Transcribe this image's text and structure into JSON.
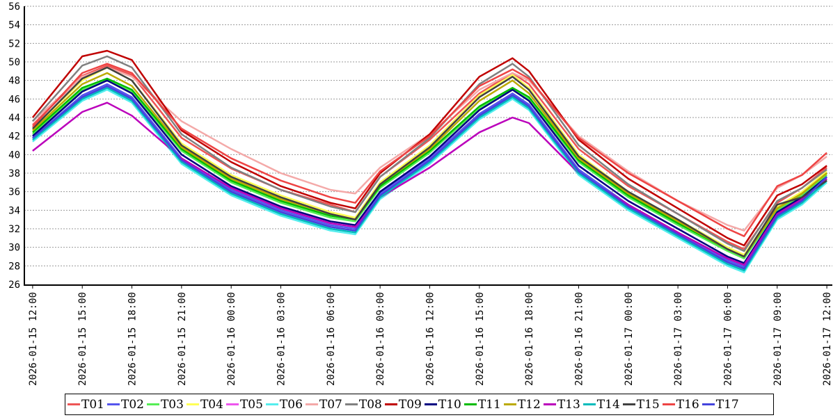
{
  "chart_data": {
    "type": "line",
    "title": "",
    "xlabel": "",
    "ylabel": "",
    "ylim": [
      26,
      56
    ],
    "yticks": [
      26,
      28,
      30,
      32,
      34,
      36,
      38,
      40,
      42,
      44,
      46,
      48,
      50,
      52,
      54,
      56
    ],
    "grid": true,
    "legend_position": "bottom",
    "xlim": [
      "2026-01-15 11:30",
      "2026-01-17 12:20"
    ],
    "x_tick_labels": [
      "2026-01-15 12:00",
      "2026-01-15 15:00",
      "2026-01-15 18:00",
      "2026-01-15 21:00",
      "2026-01-16 00:00",
      "2026-01-16 03:00",
      "2026-01-16 06:00",
      "2026-01-16 09:00",
      "2026-01-16 12:00",
      "2026-01-16 15:00",
      "2026-01-16 18:00",
      "2026-01-16 21:00",
      "2026-01-17 00:00",
      "2026-01-17 03:00",
      "2026-01-17 06:00",
      "2026-01-17 09:00",
      "2026-01-17 12:00"
    ],
    "x": [
      "2026-01-15 12:00",
      "2026-01-15 15:00",
      "2026-01-15 16:30",
      "2026-01-15 18:00",
      "2026-01-15 21:00",
      "2026-01-16 00:00",
      "2026-01-16 03:00",
      "2026-01-16 06:00",
      "2026-01-16 07:30",
      "2026-01-16 09:00",
      "2026-01-16 12:00",
      "2026-01-16 15:00",
      "2026-01-16 17:00",
      "2026-01-16 18:00",
      "2026-01-16 21:00",
      "2026-01-17 00:00",
      "2026-01-17 03:00",
      "2026-01-17 06:00",
      "2026-01-17 07:00",
      "2026-01-17 09:00",
      "2026-01-17 10:30",
      "2026-01-17 12:00"
    ],
    "series": [
      {
        "name": "T01",
        "color": "#ee5555",
        "values": [
          43.2,
          48.5,
          49.6,
          48.6,
          41.8,
          38.5,
          36.2,
          34.6,
          33.8,
          37.6,
          41.6,
          46.6,
          48.8,
          47.6,
          40.6,
          36.6,
          33.6,
          30.6,
          29.8,
          34.8,
          36.4,
          38.6
        ]
      },
      {
        "name": "T02",
        "color": "#5555ee",
        "values": [
          41.8,
          46.4,
          47.6,
          46.2,
          39.6,
          36.2,
          34.0,
          32.4,
          32.0,
          35.8,
          39.6,
          44.4,
          46.6,
          45.4,
          38.4,
          34.6,
          31.6,
          28.6,
          27.9,
          33.6,
          35.2,
          37.6
        ]
      },
      {
        "name": "T03",
        "color": "#55ee55",
        "values": [
          42.2,
          47.0,
          48.0,
          46.8,
          40.4,
          37.0,
          34.8,
          33.2,
          32.8,
          36.4,
          40.2,
          45.0,
          47.0,
          46.0,
          39.2,
          35.4,
          32.4,
          29.6,
          28.8,
          34.0,
          35.6,
          37.8
        ]
      },
      {
        "name": "T04",
        "color": "#ffff55",
        "values": [
          42.8,
          48.0,
          49.4,
          48.0,
          41.2,
          37.8,
          35.6,
          33.8,
          33.2,
          37.0,
          41.0,
          46.4,
          48.6,
          47.2,
          40.0,
          36.0,
          33.0,
          30.0,
          29.2,
          34.4,
          36.0,
          38.2
        ]
      },
      {
        "name": "T05",
        "color": "#ee55ee",
        "values": [
          41.6,
          46.2,
          47.4,
          46.0,
          39.4,
          36.0,
          33.8,
          32.2,
          31.8,
          35.6,
          39.4,
          44.2,
          46.4,
          45.2,
          38.2,
          34.4,
          31.4,
          28.4,
          27.7,
          33.4,
          35.0,
          37.4
        ]
      },
      {
        "name": "T06",
        "color": "#55eeee",
        "values": [
          41.4,
          45.8,
          47.0,
          45.6,
          39.0,
          35.6,
          33.4,
          31.8,
          31.4,
          35.2,
          39.0,
          43.8,
          46.0,
          44.8,
          37.8,
          34.0,
          31.0,
          28.0,
          27.3,
          33.0,
          34.6,
          37.0
        ]
      },
      {
        "name": "T07",
        "color": "#f4a9a8",
        "values": [
          43.6,
          48.4,
          49.4,
          48.4,
          43.6,
          40.6,
          38.0,
          36.2,
          35.8,
          38.6,
          42.2,
          47.0,
          48.8,
          48.0,
          42.0,
          38.2,
          35.0,
          32.4,
          31.8,
          36.4,
          37.8,
          39.8
        ]
      },
      {
        "name": "T08",
        "color": "#808080",
        "values": [
          43.6,
          49.6,
          50.6,
          49.4,
          42.2,
          38.6,
          36.2,
          34.4,
          33.8,
          37.6,
          41.8,
          47.6,
          49.8,
          48.4,
          41.0,
          36.8,
          33.6,
          30.4,
          29.6,
          35.0,
          36.4,
          38.4
        ]
      },
      {
        "name": "T09",
        "color": "#c00000",
        "values": [
          44.0,
          50.6,
          51.2,
          50.2,
          42.6,
          39.2,
          36.6,
          34.8,
          34.2,
          38.0,
          42.2,
          48.4,
          50.4,
          49.0,
          41.6,
          37.4,
          34.2,
          31.0,
          30.2,
          35.6,
          36.8,
          38.8
        ]
      },
      {
        "name": "T10",
        "color": "#000080",
        "values": [
          42.0,
          46.8,
          48.0,
          46.6,
          40.0,
          36.6,
          34.4,
          32.8,
          32.4,
          36.0,
          39.8,
          44.8,
          47.0,
          45.8,
          38.8,
          35.0,
          32.0,
          29.0,
          28.3,
          33.8,
          35.4,
          37.6
        ]
      },
      {
        "name": "T11",
        "color": "#00bb00",
        "values": [
          42.4,
          47.2,
          48.2,
          47.0,
          40.6,
          37.2,
          35.0,
          33.4,
          33.0,
          36.6,
          40.4,
          45.2,
          47.2,
          46.2,
          39.4,
          35.6,
          32.6,
          29.8,
          29.0,
          34.2,
          35.8,
          38.0
        ]
      },
      {
        "name": "T12",
        "color": "#bbaa00",
        "values": [
          42.6,
          47.6,
          48.8,
          47.4,
          40.8,
          37.4,
          35.2,
          33.6,
          33.0,
          36.8,
          40.6,
          45.8,
          48.0,
          46.6,
          39.6,
          35.8,
          32.8,
          29.8,
          29.0,
          34.2,
          35.8,
          38.0
        ]
      },
      {
        "name": "T13",
        "color": "#bb00bb",
        "values": [
          40.4,
          44.6,
          45.6,
          44.2,
          39.6,
          36.4,
          34.2,
          32.6,
          32.2,
          35.4,
          38.6,
          42.4,
          44.0,
          43.4,
          38.0,
          34.6,
          31.6,
          28.8,
          28.1,
          33.6,
          35.2,
          37.4
        ]
      },
      {
        "name": "T14",
        "color": "#00bbbb",
        "values": [
          41.6,
          46.0,
          47.2,
          45.8,
          39.2,
          35.8,
          33.6,
          32.0,
          31.6,
          35.4,
          39.2,
          44.0,
          46.2,
          45.0,
          38.0,
          34.2,
          31.2,
          28.2,
          27.5,
          33.2,
          34.8,
          37.2
        ]
      },
      {
        "name": "T15",
        "color": "#404040",
        "values": [
          42.8,
          48.2,
          49.4,
          48.0,
          41.0,
          37.6,
          35.4,
          33.6,
          33.0,
          36.8,
          40.8,
          46.2,
          48.4,
          47.0,
          39.8,
          36.0,
          33.0,
          29.8,
          29.0,
          34.6,
          35.4,
          37.2
        ]
      },
      {
        "name": "T16",
        "color": "#ee4444",
        "values": [
          43.0,
          48.8,
          49.8,
          48.8,
          42.8,
          39.6,
          37.2,
          35.4,
          34.8,
          38.2,
          42.0,
          47.4,
          49.2,
          48.2,
          41.8,
          38.0,
          35.0,
          32.0,
          31.2,
          36.6,
          37.8,
          40.2
        ]
      },
      {
        "name": "T17",
        "color": "#4444dd",
        "values": [
          41.8,
          46.2,
          47.4,
          46.0,
          39.4,
          36.0,
          33.8,
          32.2,
          31.8,
          35.6,
          39.4,
          44.2,
          46.4,
          45.2,
          38.2,
          34.4,
          31.4,
          28.4,
          27.7,
          33.4,
          35.0,
          37.6
        ]
      }
    ]
  }
}
